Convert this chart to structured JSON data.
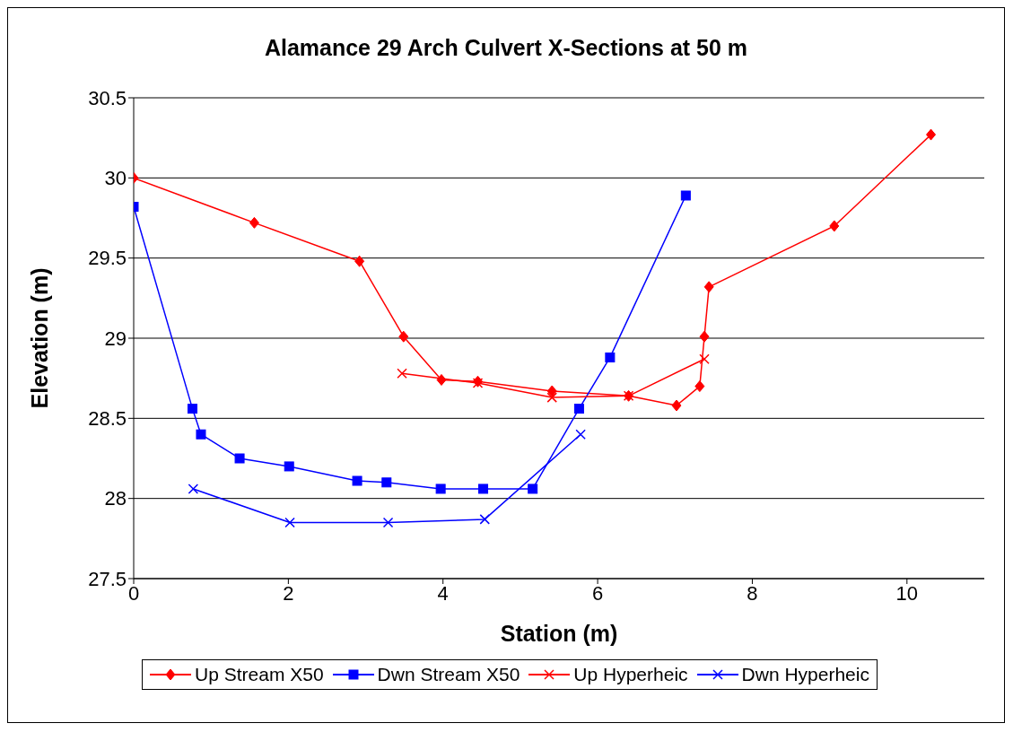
{
  "chart_data": {
    "type": "line",
    "title": "Alamance 29 Arch Culvert X-Sections at 50 m",
    "xlabel": "Station (m)",
    "ylabel": "Elevation (m)",
    "xlim": [
      0,
      11
    ],
    "xticks": [
      0,
      2,
      4,
      6,
      8,
      10
    ],
    "ylim": [
      27.5,
      30.5
    ],
    "yticks": [
      27.5,
      28,
      28.5,
      29,
      29.5,
      30,
      30.5
    ],
    "grid": "y",
    "legend": "bottom",
    "line_style": "solid",
    "series": [
      {
        "name": "Up Stream X50",
        "color": "#ff0000",
        "marker": "diamond",
        "x": [
          0,
          1.56,
          2.92,
          3.49,
          3.98,
          4.45,
          5.41,
          6.4,
          7.02,
          7.32,
          7.38,
          7.44,
          9.06,
          10.31
        ],
        "values": [
          30.0,
          29.72,
          29.48,
          29.01,
          28.74,
          28.73,
          28.67,
          28.64,
          28.58,
          28.7,
          29.01,
          29.32,
          29.7,
          30.27
        ]
      },
      {
        "name": "Dwn Stream X50",
        "color": "#0000ff",
        "marker": "square",
        "x": [
          0,
          0.76,
          0.87,
          1.37,
          2.01,
          2.89,
          3.27,
          3.97,
          4.52,
          5.16,
          5.76,
          6.16,
          7.14
        ],
        "values": [
          29.82,
          28.56,
          28.4,
          28.25,
          28.2,
          28.11,
          28.1,
          28.06,
          28.06,
          28.06,
          28.56,
          28.88,
          29.89
        ]
      },
      {
        "name": "Up Hyperheic",
        "color": "#ff0000",
        "marker": "cross",
        "x": [
          3.47,
          4.45,
          5.41,
          6.4,
          7.38
        ],
        "values": [
          28.78,
          28.72,
          28.63,
          28.64,
          28.87
        ]
      },
      {
        "name": "Dwn Hyperheic",
        "color": "#0000ff",
        "marker": "cross",
        "x": [
          0.77,
          2.02,
          3.29,
          4.54,
          5.78
        ],
        "values": [
          28.06,
          27.85,
          27.85,
          27.87,
          28.4
        ]
      }
    ]
  }
}
